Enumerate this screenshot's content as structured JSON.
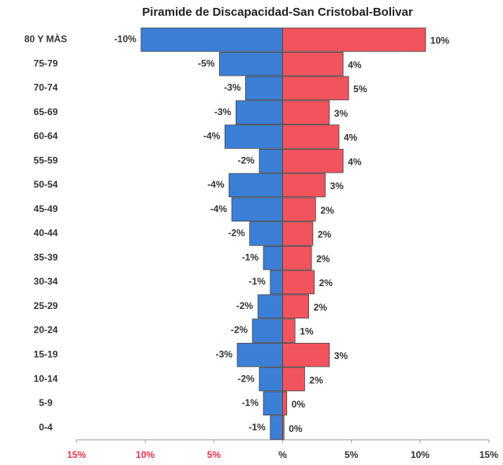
{
  "chart_data": {
    "type": "pyramid",
    "orientation": "horizontal",
    "title": "Piramide de Discapacidad-San Cristobal-Bolivar",
    "categories": [
      "80 Y MÀS",
      "75-79",
      "70-74",
      "65-69",
      "60-64",
      "55-59",
      "50-54",
      "45-49",
      "40-44",
      "35-39",
      "30-34",
      "25-29",
      "20-24",
      "15-19",
      "10-14",
      "5-9",
      "0-4"
    ],
    "series": [
      {
        "color": "#3b7fd6",
        "values": [
          -10.3,
          -4.6,
          -2.7,
          -3.4,
          -4.2,
          -1.7,
          -3.9,
          -3.7,
          -2.4,
          -1.4,
          -0.9,
          -1.8,
          -2.2,
          -3.3,
          -1.7,
          -1.4,
          -0.9
        ],
        "value_labels": [
          "-10%",
          "-5%",
          "-3%",
          "-3%",
          "-4%",
          "-2%",
          "-4%",
          "-4%",
          "-2%",
          "-1%",
          "-1%",
          "-2%",
          "-2%",
          "-3%",
          "-2%",
          "-1%",
          "-1%"
        ]
      },
      {
        "color": "#f2545e",
        "values": [
          10.4,
          4.4,
          4.8,
          3.4,
          4.1,
          4.4,
          3.1,
          2.4,
          2.2,
          2.1,
          2.3,
          1.9,
          0.9,
          3.4,
          1.6,
          0.3,
          0.1
        ],
        "value_labels": [
          "10%",
          "4%",
          "5%",
          "3%",
          "4%",
          "4%",
          "3%",
          "2%",
          "2%",
          "2%",
          "2%",
          "2%",
          "1%",
          "3%",
          "2%",
          "0%",
          "0%"
        ]
      }
    ],
    "xlim": [
      -15,
      15
    ],
    "xticks": [
      {
        "value": -15,
        "label": "15%"
      },
      {
        "value": -10,
        "label": "10%"
      },
      {
        "value": -5,
        "label": "5%"
      },
      {
        "value": 0,
        "label": "%"
      },
      {
        "value": 5,
        "label": "5%"
      },
      {
        "value": 10,
        "label": "10%"
      },
      {
        "value": 15,
        "label": "15%"
      }
    ]
  }
}
